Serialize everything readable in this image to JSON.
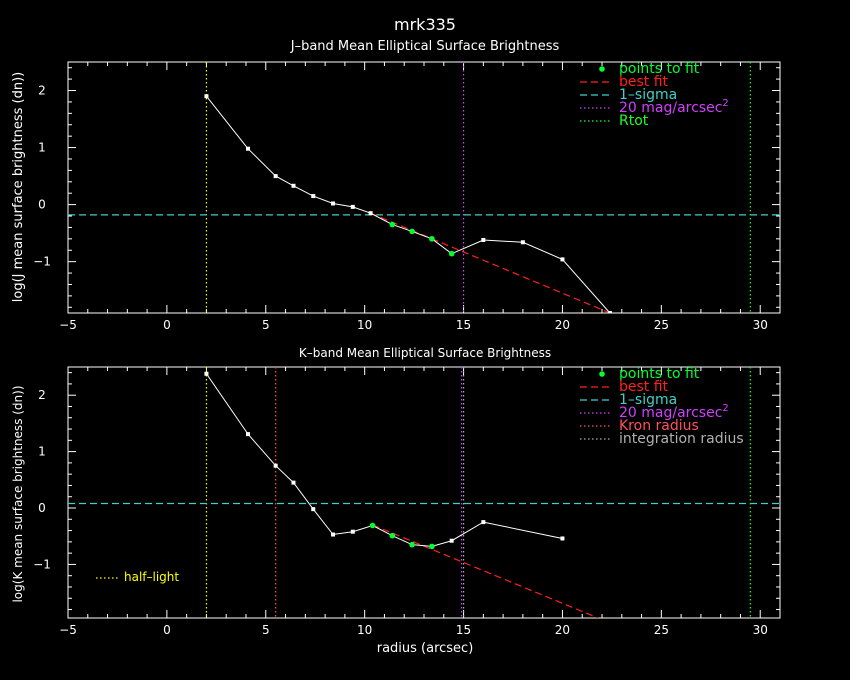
{
  "title": "mrk335",
  "xlabel": "radius (arcsec)",
  "colors": {
    "background": "#000000",
    "axis": "#ffffff",
    "points_to_fit": "#00ff33",
    "best_fit": "#ff2020",
    "sigma": "#40d0c8",
    "mag20": "#d040ff",
    "rtot": "#20ff20",
    "kron": "#ff5060",
    "integration": "#b0b0b0",
    "half_light": "#ffff00"
  },
  "panels": [
    {
      "subtitle": "J–band Mean Elliptical Surface Brightness",
      "ylabel": "log(J mean surface brightness (dn))",
      "legend": [
        {
          "label": "points to fit",
          "style": "dot",
          "color_key": "points_to_fit"
        },
        {
          "label": "best fit",
          "style": "dash",
          "color_key": "best_fit"
        },
        {
          "label": "1–sigma",
          "style": "dash",
          "color_key": "sigma"
        },
        {
          "label": "20 mag/arcsec",
          "sup": "2",
          "style": "dot-line",
          "color_key": "mag20"
        },
        {
          "label": "Rtot",
          "style": "dot-line",
          "color_key": "rtot"
        }
      ]
    },
    {
      "subtitle": "K–band Mean Elliptical Surface Brightness",
      "ylabel": "log(K mean surface brightness (dn))",
      "legend": [
        {
          "label": "points to fit",
          "style": "dot",
          "color_key": "points_to_fit"
        },
        {
          "label": "best fit",
          "style": "dash",
          "color_key": "best_fit"
        },
        {
          "label": "1–sigma",
          "style": "dash",
          "color_key": "sigma"
        },
        {
          "label": "20 mag/arcsec",
          "sup": "2",
          "style": "dot-line",
          "color_key": "mag20"
        },
        {
          "label": "Kron radius",
          "style": "dot-line",
          "color_key": "kron"
        },
        {
          "label": "integration radius",
          "style": "dot-line",
          "color_key": "integration"
        }
      ],
      "half_light_label": "half–light"
    }
  ],
  "chart_data": [
    {
      "type": "line",
      "title": "J–band Mean Elliptical Surface Brightness",
      "xlabel": "",
      "ylabel": "log(J mean surface brightness (dn))",
      "xlim": [
        -5,
        31
      ],
      "ylim": [
        -1.9,
        2.5
      ],
      "xticks": [
        -5,
        0,
        5,
        10,
        15,
        20,
        25,
        30
      ],
      "yticks": [
        -1,
        0,
        1,
        2
      ],
      "profile": {
        "x": [
          2.0,
          4.1,
          5.5,
          6.4,
          7.4,
          8.4,
          9.4,
          10.3,
          11.4,
          12.4,
          13.4,
          14.4,
          16.0,
          18.0,
          20.0,
          22.4
        ],
        "y": [
          1.9,
          0.98,
          0.5,
          0.33,
          0.15,
          0.02,
          -0.04,
          -0.15,
          -0.35,
          -0.47,
          -0.6,
          -0.86,
          -0.62,
          -0.66,
          -0.96,
          -1.9
        ]
      },
      "fit_points": {
        "x": [
          11.4,
          12.4,
          13.4,
          14.4
        ],
        "y": [
          -0.35,
          -0.47,
          -0.6,
          -0.86
        ]
      },
      "best_fit_line": {
        "x": [
          10.3,
          22.4
        ],
        "y": [
          -0.15,
          -1.9
        ]
      },
      "sigma_level": -0.18,
      "mag20_radius": 15.0,
      "rtot_radius": 29.5,
      "half_light_radius": 2.0
    },
    {
      "type": "line",
      "title": "K–band Mean Elliptical Surface Brightness",
      "xlabel": "radius (arcsec)",
      "ylabel": "log(K mean surface brightness (dn))",
      "xlim": [
        -5,
        31
      ],
      "ylim": [
        -1.95,
        2.5
      ],
      "xticks": [
        -5,
        0,
        5,
        10,
        15,
        20,
        25,
        30
      ],
      "yticks": [
        -1,
        0,
        1,
        2
      ],
      "profile": {
        "x": [
          2.0,
          4.1,
          5.5,
          6.4,
          7.4,
          8.4,
          9.4,
          10.4,
          11.4,
          12.4,
          13.4,
          14.4,
          16.0,
          20.0
        ],
        "y": [
          2.38,
          1.31,
          0.75,
          0.45,
          -0.02,
          -0.47,
          -0.42,
          -0.31,
          -0.49,
          -0.65,
          -0.68,
          -0.58,
          -0.25,
          -0.54
        ]
      },
      "fit_points": {
        "x": [
          10.4,
          11.4,
          12.4,
          13.4
        ],
        "y": [
          -0.31,
          -0.49,
          -0.65,
          -0.68
        ]
      },
      "best_fit_line": {
        "x": [
          10.4,
          21.8
        ],
        "y": [
          -0.3,
          -1.95
        ]
      },
      "sigma_level": 0.08,
      "mag20_radius": 14.9,
      "kron_radius": 5.5,
      "integration_radius": 15.0,
      "rtot_radius": 29.5,
      "half_light_radius": 2.0
    }
  ]
}
